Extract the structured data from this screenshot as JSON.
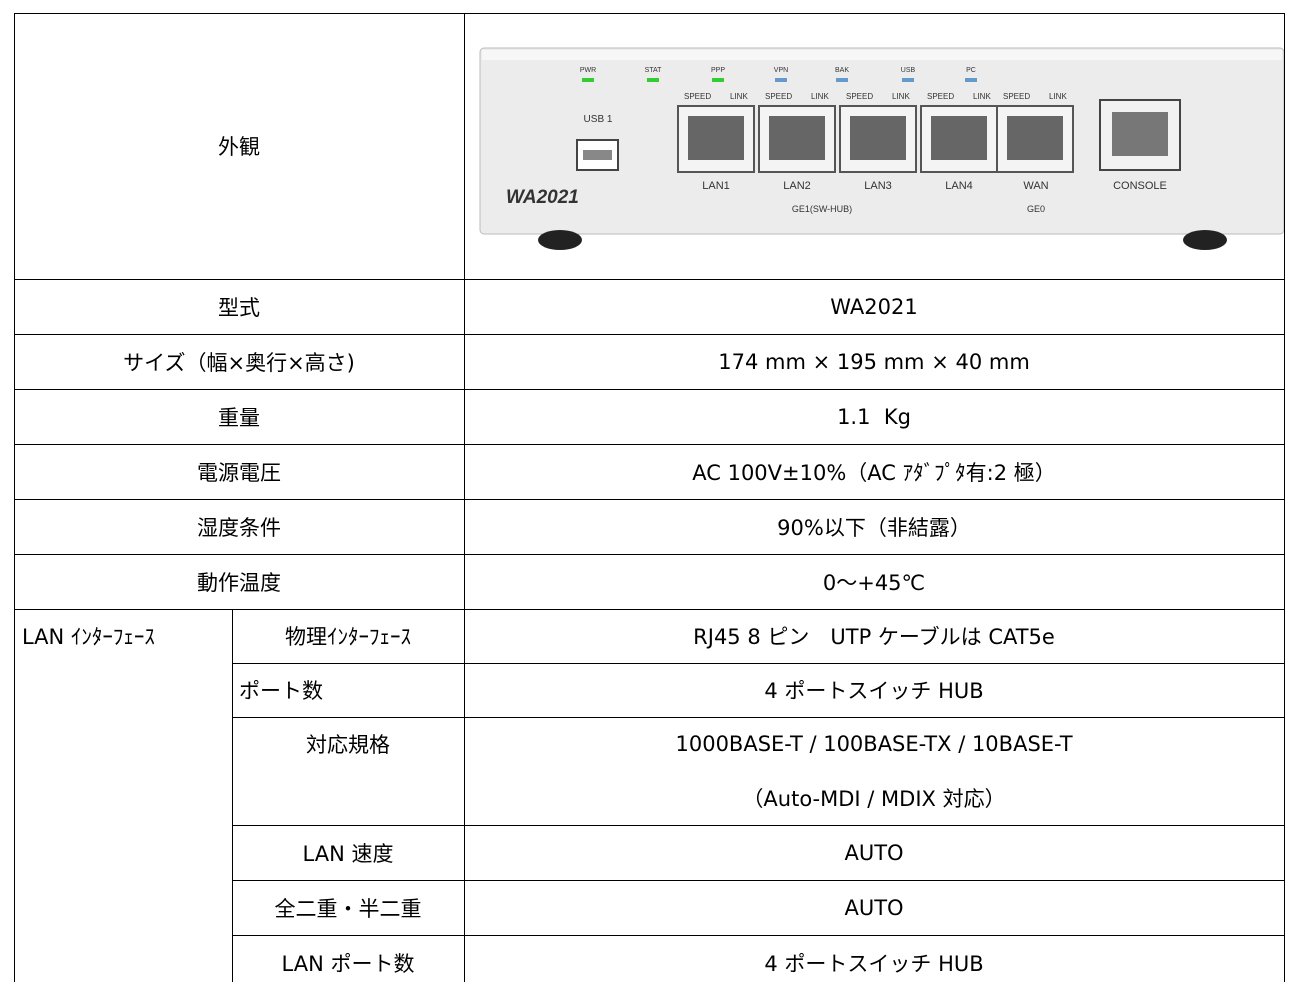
{
  "appearance": {
    "label": "外観",
    "image_labels": {
      "leds": [
        "PWR",
        "STAT",
        "PPP",
        "VPN",
        "BAK",
        "USB",
        "PC"
      ],
      "speed": "SPEED",
      "link": "LINK",
      "usb": "USB 1",
      "model": "WA2021",
      "ports": [
        "LAN1",
        "LAN2",
        "LAN3",
        "LAN4"
      ],
      "wan": "WAN",
      "console": "CONSOLE",
      "ge1": "GE1(SW-HUB)",
      "ge0": "GE0"
    }
  },
  "rows": [
    [
      "型式",
      "WA2021"
    ],
    [
      "サイズ（幅×奥行×高さ)",
      "174 mm × 195 mm × 40 mm"
    ],
    [
      "重量",
      "1.1  Kg"
    ],
    [
      "電源電圧",
      "AC 100V±10%（AC ｱﾀﾞﾌﾟﾀ有:2 極）"
    ],
    [
      "湿度条件",
      "90%以下（非結露）"
    ],
    [
      "動作温度",
      "0～+45℃"
    ]
  ],
  "lan": {
    "group": "LAN ｲﾝﾀｰﾌｪｰｽ",
    "rows": [
      [
        "物理ｲﾝﾀｰﾌｪｰｽ",
        "RJ45 8 ピン　UTP ケーブルは CAT5e"
      ],
      [
        "ポート数",
        "4 ポートスイッチ HUB"
      ],
      [
        "対応規格",
        "1000BASE-T / 100BASE-TX / 10BASE-T",
        "（Auto-MDI / MDIX 対応）"
      ],
      [
        "LAN 速度",
        "AUTO"
      ],
      [
        "全二重・半二重",
        "AUTO"
      ],
      [
        "LAN ポート数",
        "4 ポートスイッチ HUB"
      ]
    ]
  }
}
